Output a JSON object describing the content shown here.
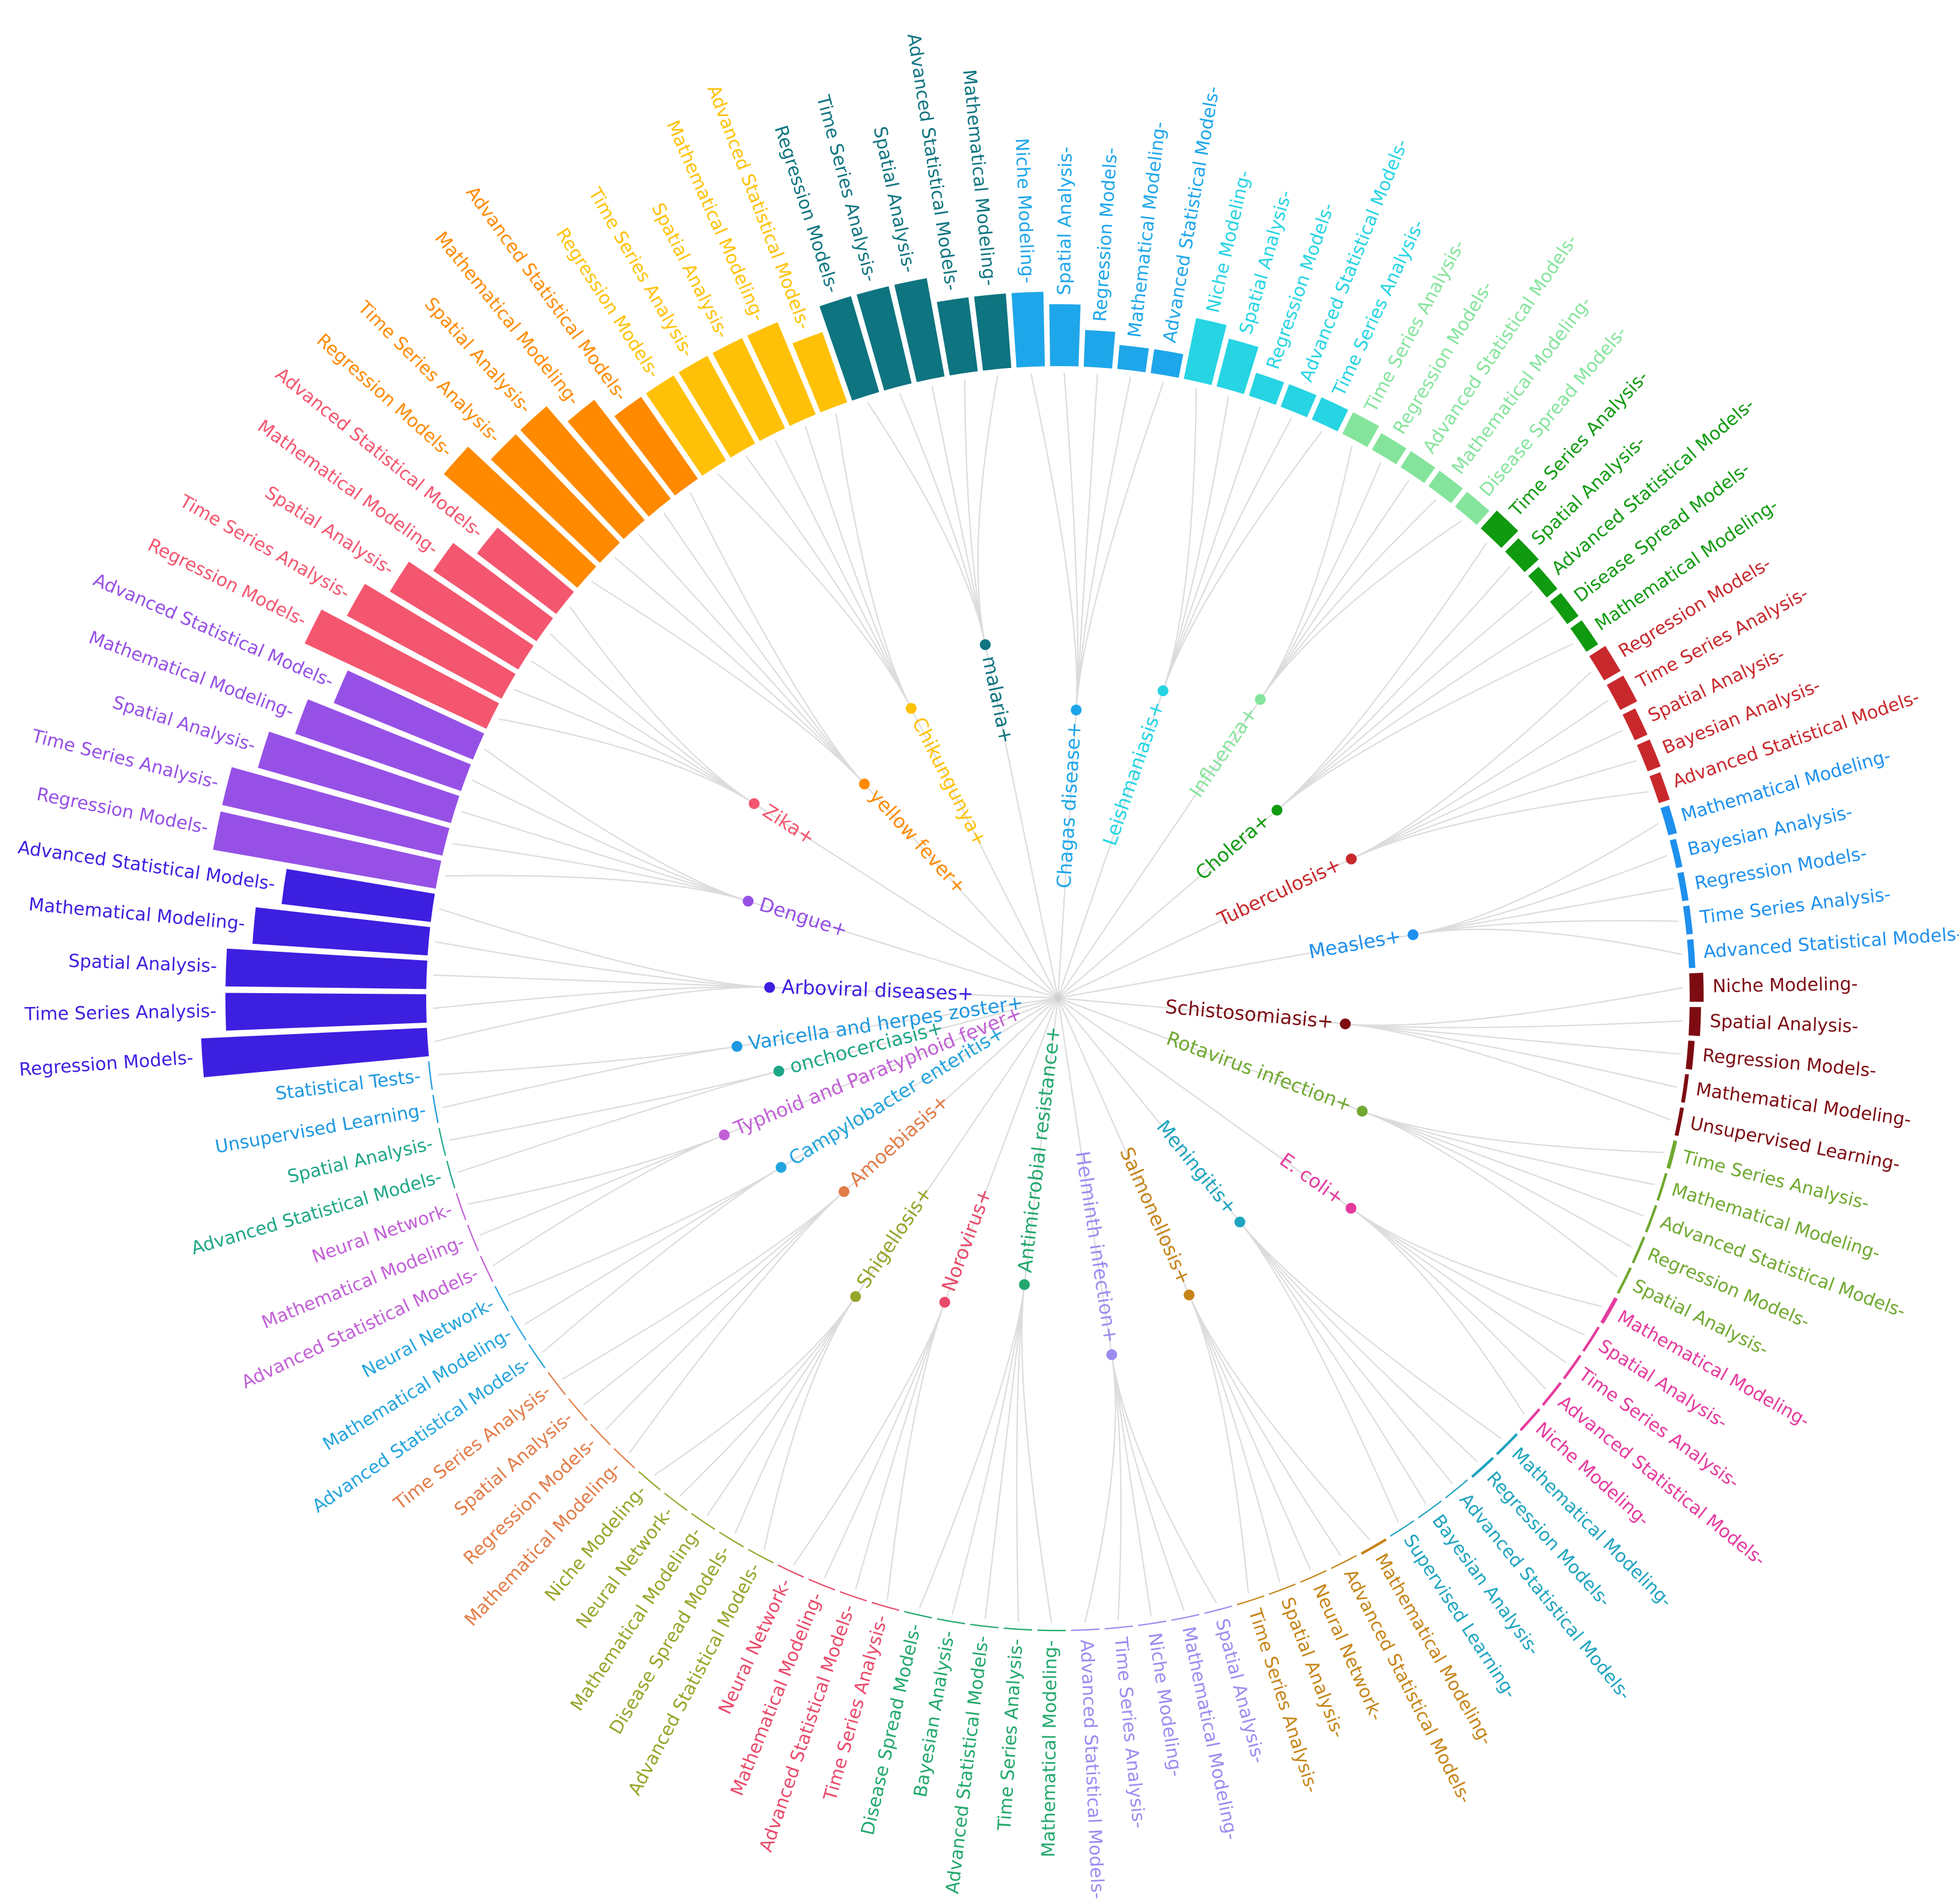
{
  "chart_data": {
    "type": "radial-bar-dendrogram",
    "value_range": [
      0,
      10
    ],
    "groups": [
      {
        "name": "Arboviral diseases+",
        "color": "#3d1fe0",
        "methods": [
          {
            "label": "Regression Models-",
            "value": 9
          },
          {
            "label": "Time Series Analysis-",
            "value": 8
          },
          {
            "label": "Spatial Analysis-",
            "value": 8
          },
          {
            "label": "Mathematical Modeling-",
            "value": 7
          },
          {
            "label": "Advanced Statistical Models-",
            "value": 6
          }
        ]
      },
      {
        "name": "Dengue+",
        "color": "#9650e6",
        "methods": [
          {
            "label": "Regression Models-",
            "value": 9
          },
          {
            "label": "Time Series Analysis-",
            "value": 9
          },
          {
            "label": "Spatial Analysis-",
            "value": 8
          },
          {
            "label": "Mathematical Modeling-",
            "value": 7
          },
          {
            "label": "Advanced Statistical Models-",
            "value": 6
          }
        ]
      },
      {
        "name": "Zika+",
        "color": "#f4566f",
        "methods": [
          {
            "label": "Regression Models-",
            "value": 8
          },
          {
            "label": "Time Series Analysis-",
            "value": 7
          },
          {
            "label": "Spatial Analysis-",
            "value": 6
          },
          {
            "label": "Mathematical Modeling-",
            "value": 5
          },
          {
            "label": "Advanced Statistical Models-",
            "value": 4
          }
        ]
      },
      {
        "name": "yellow fever+",
        "color": "#ff8a00",
        "methods": [
          {
            "label": "Regression Models-",
            "value": 7
          },
          {
            "label": "Time Series Analysis-",
            "value": 6
          },
          {
            "label": "Spatial Analysis-",
            "value": 6
          },
          {
            "label": "Mathematical Modeling-",
            "value": 5
          },
          {
            "label": "Advanced Statistical Models-",
            "value": 4
          }
        ]
      },
      {
        "name": "Chikungunya+",
        "color": "#ffc107",
        "methods": [
          {
            "label": "Regression Models-",
            "value": 4
          },
          {
            "label": "Time Series Analysis-",
            "value": 4
          },
          {
            "label": "Spatial Analysis-",
            "value": 4
          },
          {
            "label": "Mathematical Modeling-",
            "value": 4
          },
          {
            "label": "Advanced Statistical Models-",
            "value": 3
          }
        ]
      },
      {
        "name": "malaria+",
        "color": "#0e7480",
        "methods": [
          {
            "label": "Regression Models-",
            "value": 4
          },
          {
            "label": "Time Series Analysis-",
            "value": 4
          },
          {
            "label": "Spatial Analysis-",
            "value": 4
          },
          {
            "label": "Advanced Statistical Models-",
            "value": 3
          },
          {
            "label": "Mathematical Modeling-",
            "value": 3
          }
        ]
      },
      {
        "name": "Chagas disease+",
        "color": "#1ea6ea",
        "methods": [
          {
            "label": "Niche Modeling-",
            "value": 3
          },
          {
            "label": "Spatial Analysis-",
            "value": 2.5
          },
          {
            "label": "Regression Models-",
            "value": 1.5
          },
          {
            "label": "Mathematical Modeling-",
            "value": 1
          },
          {
            "label": "Advanced Statistical Models-",
            "value": 1
          }
        ]
      },
      {
        "name": "Leishmaniasis+",
        "color": "#26d4e3",
        "methods": [
          {
            "label": "Niche Modeling-",
            "value": 2.5
          },
          {
            "label": "Spatial Analysis-",
            "value": 2
          },
          {
            "label": "Regression Models-",
            "value": 1
          },
          {
            "label": "Advanced Statistical Models-",
            "value": 1
          },
          {
            "label": "Time Series Analysis-",
            "value": 1
          }
        ]
      },
      {
        "name": "Influenza+",
        "color": "#85e49c",
        "methods": [
          {
            "label": "Time Series Analysis-",
            "value": 1
          },
          {
            "label": "Regression Models-",
            "value": 0.8
          },
          {
            "label": "Advanced Statistical Models-",
            "value": 0.8
          },
          {
            "label": "Mathematical Modeling-",
            "value": 0.8
          },
          {
            "label": "Disease Spread Models-",
            "value": 0.8
          }
        ]
      },
      {
        "name": "Cholera+",
        "color": "#109a10",
        "methods": [
          {
            "label": "Time Series Analysis-",
            "value": 1
          },
          {
            "label": "Spatial Analysis-",
            "value": 0.8
          },
          {
            "label": "Advanced Statistical Models-",
            "value": 0.6
          },
          {
            "label": "Disease Spread Models-",
            "value": 0.6
          },
          {
            "label": "Mathematical Modeling-",
            "value": 0.6
          }
        ]
      },
      {
        "name": "Tuberculosis+",
        "color": "#c8282c",
        "methods": [
          {
            "label": "Regression Models-",
            "value": 0.8
          },
          {
            "label": "Time Series Analysis-",
            "value": 0.8
          },
          {
            "label": "Spatial Analysis-",
            "value": 0.6
          },
          {
            "label": "Bayesian Analysis-",
            "value": 0.6
          },
          {
            "label": "Advanced Statistical Models-",
            "value": 0.5
          }
        ]
      },
      {
        "name": "Measles+",
        "color": "#1e90ee",
        "methods": [
          {
            "label": "Mathematical Modeling-",
            "value": 0.4
          },
          {
            "label": "Bayesian Analysis-",
            "value": 0.3
          },
          {
            "label": "Regression Models-",
            "value": 0.3
          },
          {
            "label": "Time Series Analysis-",
            "value": 0.3
          },
          {
            "label": "Advanced Statistical Models-",
            "value": 0.3
          }
        ]
      },
      {
        "name": "Schistosomiasis+",
        "color": "#7d0c12",
        "methods": [
          {
            "label": "Niche Modeling-",
            "value": 0.6
          },
          {
            "label": "Spatial Analysis-",
            "value": 0.5
          },
          {
            "label": "Regression Models-",
            "value": 0.3
          },
          {
            "label": "Mathematical Modeling-",
            "value": 0.2
          },
          {
            "label": "Unsupervised Learning-",
            "value": 0.2
          }
        ]
      },
      {
        "name": "Rotavirus infection+",
        "color": "#70a830",
        "methods": [
          {
            "label": "Time Series Analysis-",
            "value": 0.2
          },
          {
            "label": "Mathematical Modeling-",
            "value": 0.15
          },
          {
            "label": "Advanced Statistical Models-",
            "value": 0.15
          },
          {
            "label": "Regression Models-",
            "value": 0.15
          },
          {
            "label": "Spatial Analysis-",
            "value": 0.15
          }
        ]
      },
      {
        "name": "E. coli+",
        "color": "#e53a9e",
        "methods": [
          {
            "label": "Mathematical Modeling-",
            "value": 0.2
          },
          {
            "label": "Spatial Analysis-",
            "value": 0.15
          },
          {
            "label": "Time Series Analysis-",
            "value": 0.15
          },
          {
            "label": "Advanced Statistical Models-",
            "value": 0.15
          },
          {
            "label": "Niche Modeling-",
            "value": 0.15
          }
        ]
      },
      {
        "name": "Meningitis+",
        "color": "#1fa4c0",
        "methods": [
          {
            "label": "Mathematical Modeling-",
            "value": 0.15
          },
          {
            "label": "Regression Models-",
            "value": 0.15
          },
          {
            "label": "Advanced Statistical Models-",
            "value": 0.1
          },
          {
            "label": "Bayesian Analysis-",
            "value": 0.1
          },
          {
            "label": "Supervised Learning-",
            "value": 0.1
          }
        ]
      },
      {
        "name": "Salmonellosis+",
        "color": "#c68418",
        "methods": [
          {
            "label": "Mathematical Modeling-",
            "value": 0.15
          },
          {
            "label": "Advanced Statistical Models-",
            "value": 0.1
          },
          {
            "label": "Neural Network-",
            "value": 0.1
          },
          {
            "label": "Spatial Analysis-",
            "value": 0.1
          },
          {
            "label": "Time Series Analysis-",
            "value": 0.1
          }
        ]
      },
      {
        "name": "Helminth infection+",
        "color": "#9b8cf0",
        "methods": [
          {
            "label": "Spatial Analysis-",
            "value": 0.1
          },
          {
            "label": "Mathematical Modeling-",
            "value": 0.1
          },
          {
            "label": "Niche Modeling-",
            "value": 0.1
          },
          {
            "label": "Time Series Analysis-",
            "value": 0.1
          },
          {
            "label": "Advanced Statistical Models-",
            "value": 0.1
          }
        ]
      },
      {
        "name": "Antimicrobial resistance+",
        "color": "#22a86c",
        "methods": [
          {
            "label": "Mathematical Modeling-",
            "value": 0.1
          },
          {
            "label": "Time Series Analysis-",
            "value": 0.1
          },
          {
            "label": "Advanced Statistical Models-",
            "value": 0.1
          },
          {
            "label": "Bayesian Analysis-",
            "value": 0.1
          },
          {
            "label": "Disease Spread Models-",
            "value": 0.1
          }
        ]
      },
      {
        "name": "Norovirus+",
        "color": "#e84a6a",
        "methods": [
          {
            "label": "Time Series Analysis-",
            "value": 0.1
          },
          {
            "label": "Advanced Statistical Models-",
            "value": 0.1
          },
          {
            "label": "Mathematical Modeling-",
            "value": 0.1
          },
          {
            "label": "Neural Network-",
            "value": 0.1
          }
        ]
      },
      {
        "name": "Shigellosis+",
        "color": "#97a52a",
        "methods": [
          {
            "label": "Advanced Statistical Models-",
            "value": 0.1
          },
          {
            "label": "Disease Spread Models-",
            "value": 0.1
          },
          {
            "label": "Mathematical Modeling-",
            "value": 0.1
          },
          {
            "label": "Neural Network-",
            "value": 0.1
          },
          {
            "label": "Niche Modeling-",
            "value": 0.1
          }
        ]
      },
      {
        "name": "Amoebiasis+",
        "color": "#e27c48",
        "methods": [
          {
            "label": "Mathematical Modeling-",
            "value": 0.1
          },
          {
            "label": "Regression Models-",
            "value": 0.1
          },
          {
            "label": "Spatial Analysis-",
            "value": 0.1
          },
          {
            "label": "Time Series Analysis-",
            "value": 0.1
          }
        ]
      },
      {
        "name": "Campylobacter enteritis+",
        "color": "#24a4dc",
        "methods": [
          {
            "label": "Advanced Statistical Models-",
            "value": 0.1
          },
          {
            "label": "Mathematical Modeling-",
            "value": 0.1
          },
          {
            "label": "Neural Network-",
            "value": 0.1
          }
        ]
      },
      {
        "name": "Typhoid and Paratyphoid fever+",
        "color": "#c160d6",
        "methods": [
          {
            "label": "Advanced Statistical Models-",
            "value": 0.1
          },
          {
            "label": "Mathematical Modeling-",
            "value": 0.1
          },
          {
            "label": "Neural Network-",
            "value": 0.1
          }
        ]
      },
      {
        "name": "onchocerciasis+",
        "color": "#1ea687",
        "methods": [
          {
            "label": "Advanced Statistical Models-",
            "value": 0.1
          },
          {
            "label": "Spatial Analysis-",
            "value": 0.1
          }
        ]
      },
      {
        "name": "Varicella and herpes zoster+",
        "color": "#1e98e0",
        "methods": [
          {
            "label": "Unsupervised Learning-",
            "value": 0.1
          },
          {
            "label": "Statistical Tests-",
            "value": 0.1
          }
        ]
      }
    ]
  }
}
